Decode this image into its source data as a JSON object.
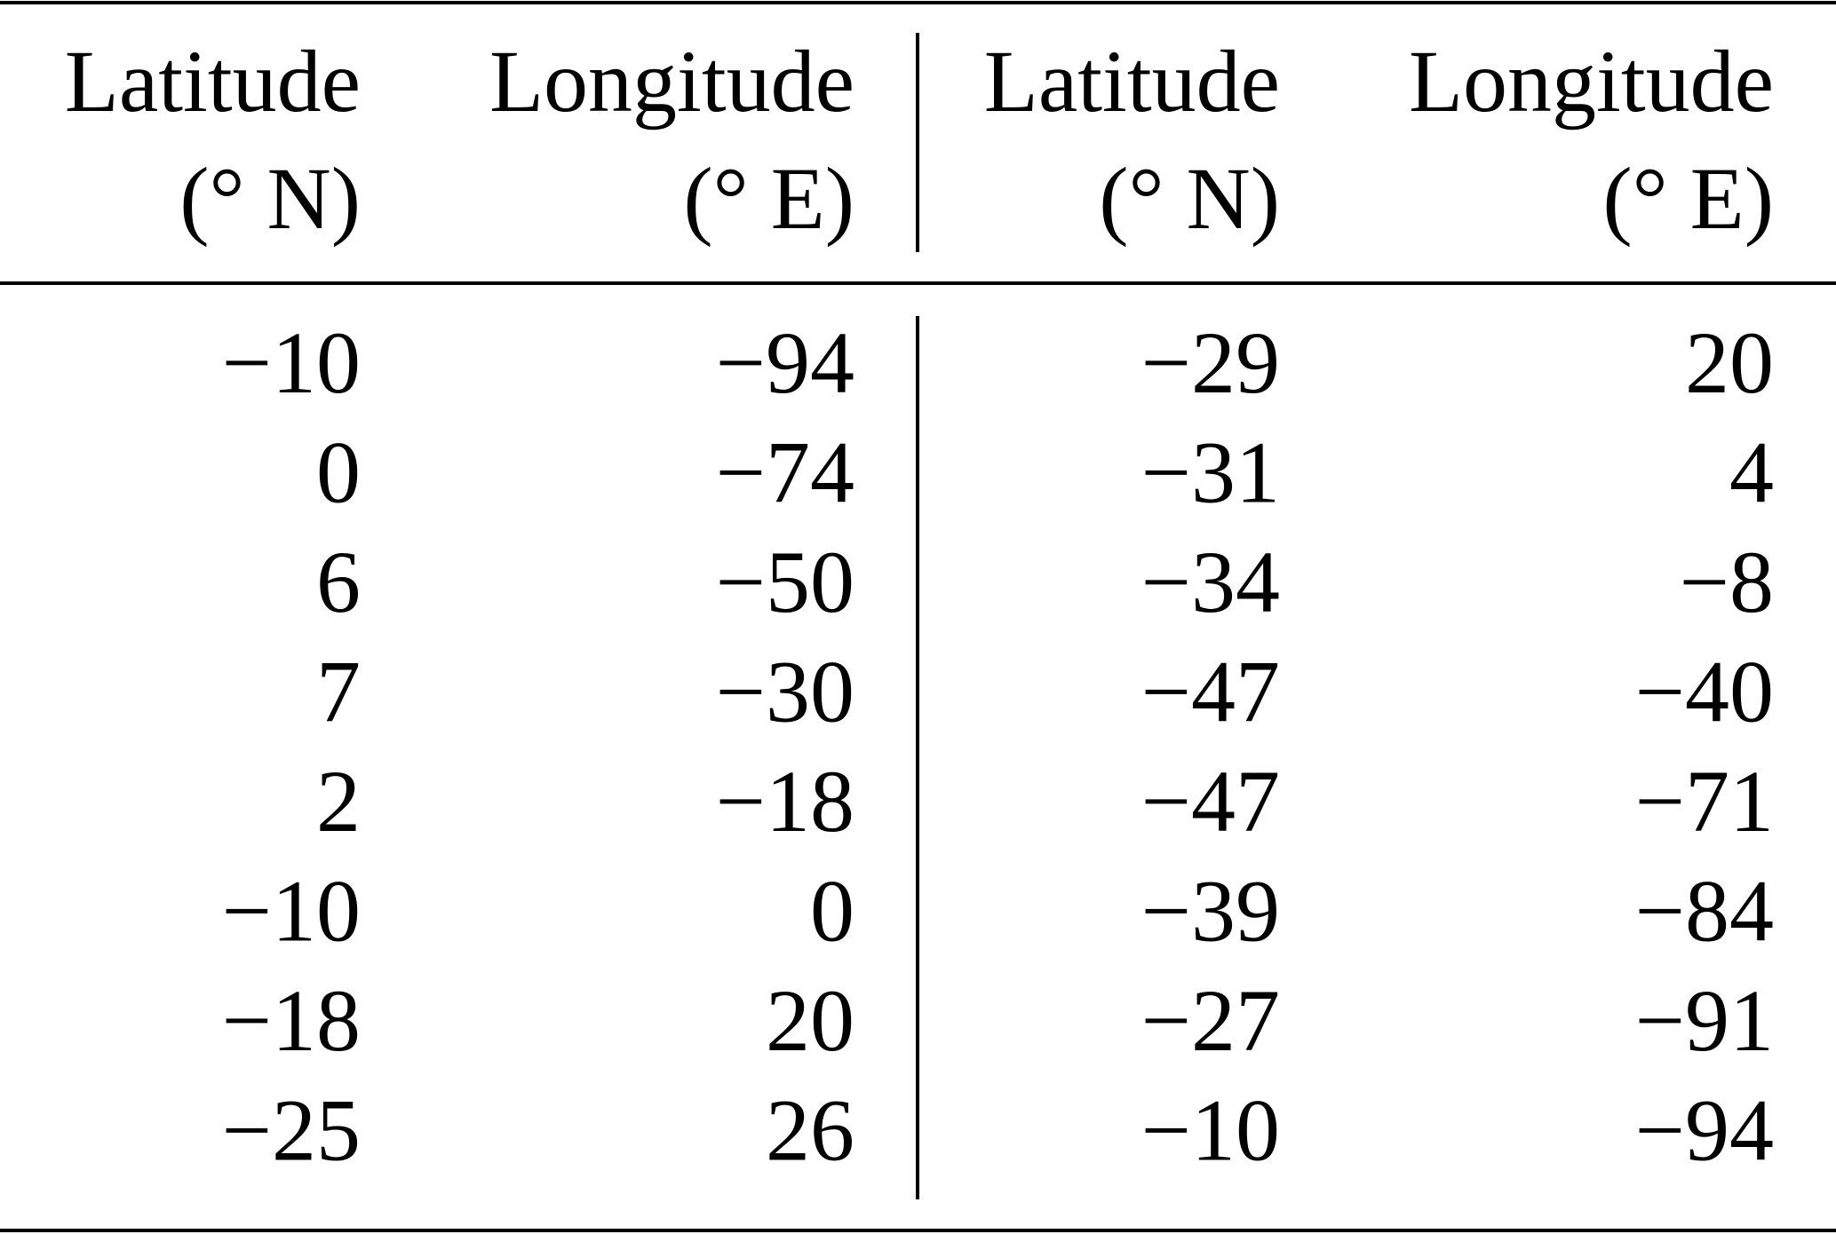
{
  "table": {
    "header": [
      [
        "Latitude",
        "(° N)"
      ],
      [
        "Longitude",
        "(° E)"
      ],
      [
        "Latitude",
        "(° N)"
      ],
      [
        "Longitude",
        "(° E)"
      ]
    ],
    "rows": [
      [
        "−10",
        "−94",
        "−29",
        "20"
      ],
      [
        "0",
        "−74",
        "−31",
        "4"
      ],
      [
        "6",
        "−50",
        "−34",
        "−8"
      ],
      [
        "7",
        "−30",
        "−47",
        "−40"
      ],
      [
        "2",
        "−18",
        "−47",
        "−71"
      ],
      [
        "−10",
        "0",
        "−39",
        "−84"
      ],
      [
        "−18",
        "20",
        "−27",
        "−91"
      ],
      [
        "−25",
        "26",
        "−10",
        "−94"
      ]
    ]
  }
}
